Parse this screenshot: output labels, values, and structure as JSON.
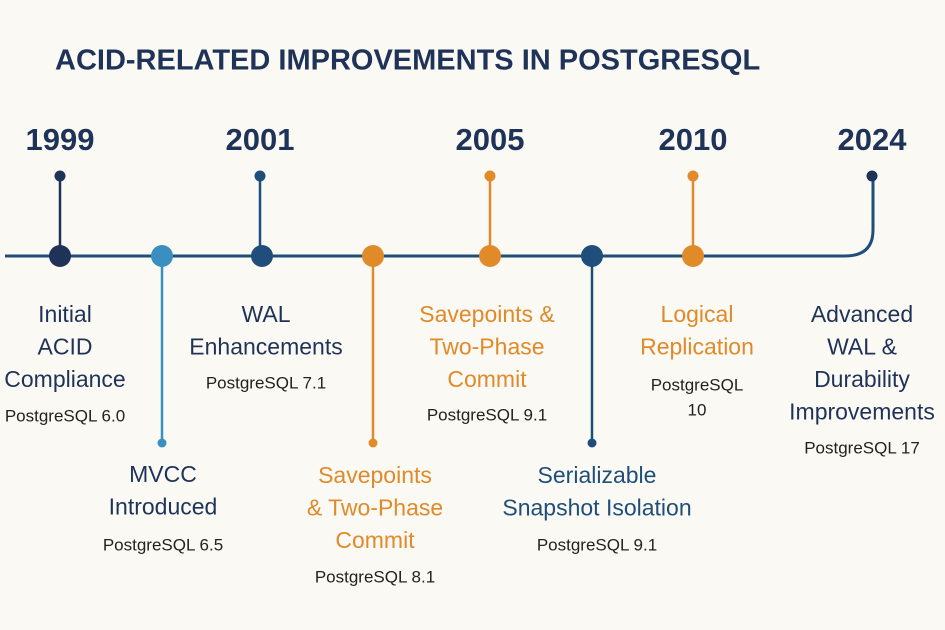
{
  "title": "ACID-RELATED IMPROVEMENTS IN POSTGRESQL",
  "years": [
    "1999",
    "2001",
    "2005",
    "2010",
    "2024"
  ],
  "events": [
    {
      "title_lines": [
        "Initial",
        "ACID",
        "Compliance"
      ],
      "version_lines": [
        "PostgreSQL 6.0"
      ]
    },
    {
      "title_lines": [
        "MVCC",
        "Introduced"
      ],
      "version_lines": [
        "PostgreSQL 6.5"
      ]
    },
    {
      "title_lines": [
        "WAL",
        "Enhancements"
      ],
      "version_lines": [
        "PostgreSQL 7.1"
      ]
    },
    {
      "title_lines": [
        "Savepoints",
        "& Two-Phase",
        "Commit"
      ],
      "version_lines": [
        "PostgreSQL 8.1"
      ]
    },
    {
      "title_lines": [
        "Savepoints &",
        "Two-Phase",
        "Commit"
      ],
      "version_lines": [
        "PostgreSQL 9.1"
      ]
    },
    {
      "title_lines": [
        "Serializable",
        "Snapshot Isolation"
      ],
      "version_lines": [
        "PostgreSQL 9.1"
      ]
    },
    {
      "title_lines": [
        "Logical",
        "Replication"
      ],
      "version_lines": [
        "PostgreSQL",
        "10"
      ]
    },
    {
      "title_lines": [
        "Advanced",
        "WAL &",
        "Durability",
        "Improvements"
      ],
      "version_lines": [
        "PostgreSQL 17"
      ]
    }
  ]
}
